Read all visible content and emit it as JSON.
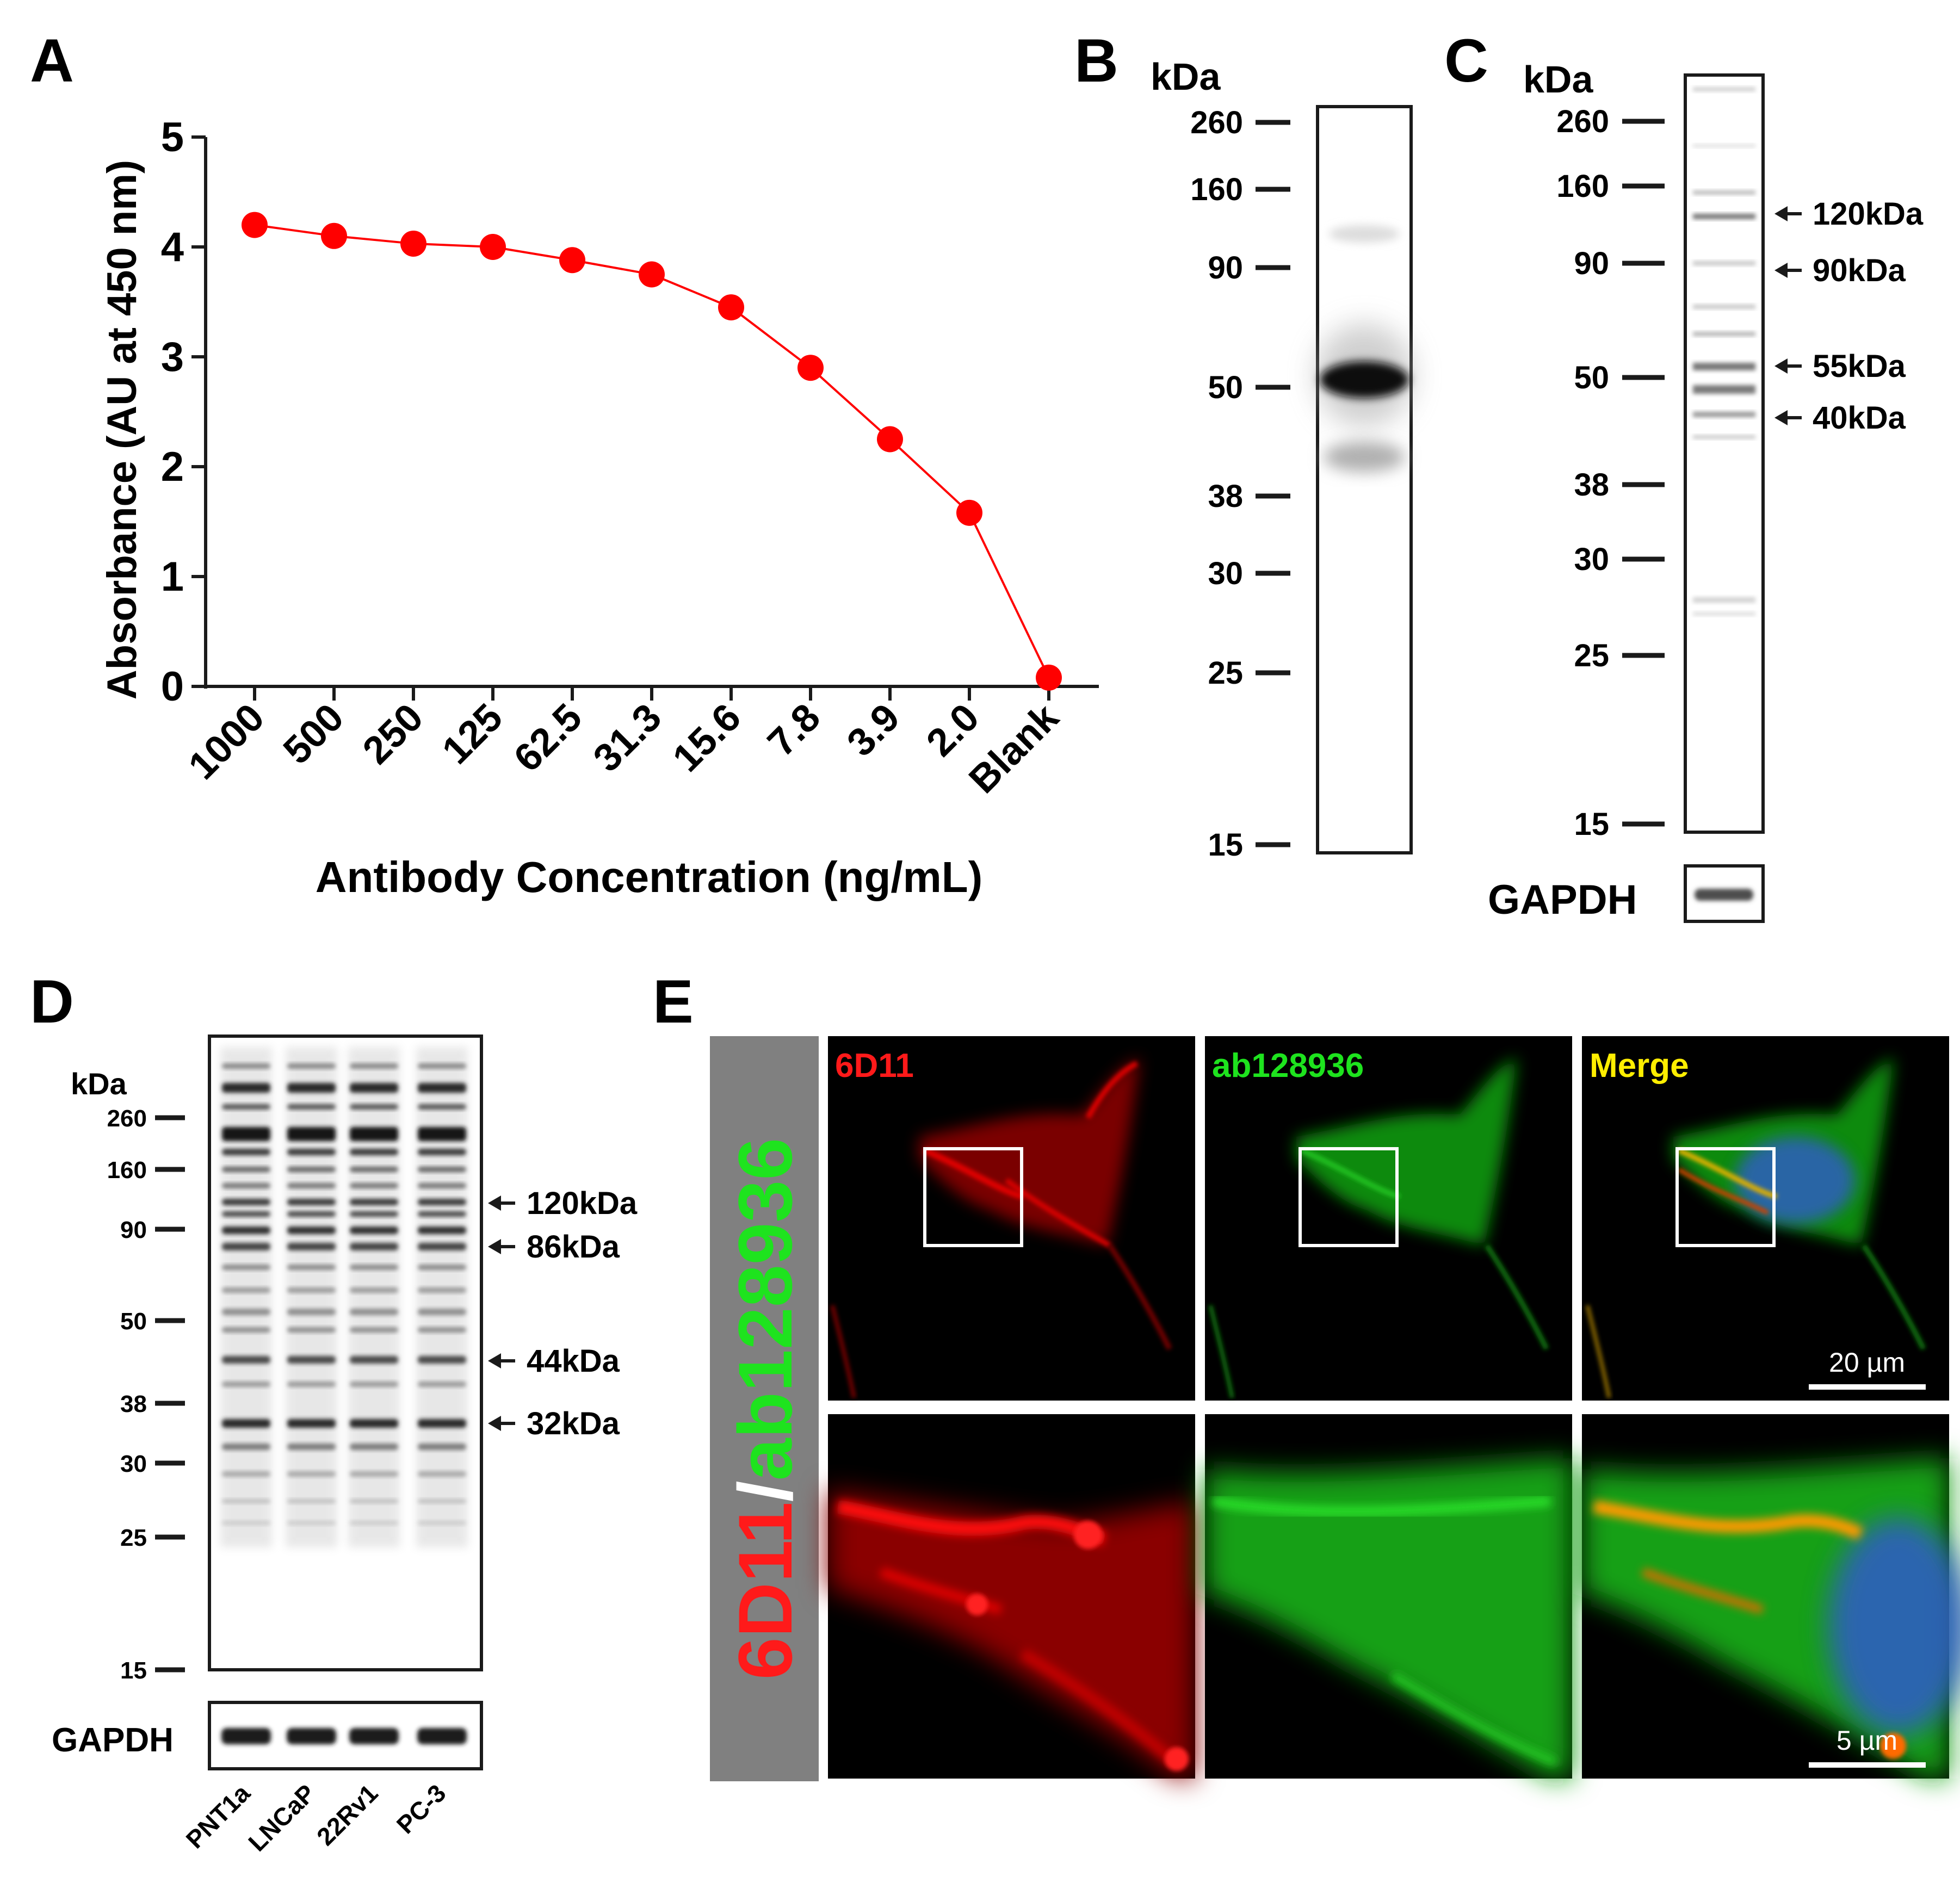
{
  "panels": {
    "a": "A",
    "b": "B",
    "c": "C",
    "d": "D",
    "e": "E"
  },
  "chart_data": {
    "type": "line",
    "title": "",
    "xlabel": "Antibody Concentration (ng/mL)",
    "ylabel": "Absorbance (AU at 450 nm)",
    "categories": [
      "1000",
      "500",
      "250",
      "125",
      "62.5",
      "31.3",
      "15.6",
      "7.8",
      "3.9",
      "2.0",
      "Blank"
    ],
    "values": [
      4.2,
      4.1,
      4.03,
      4.0,
      3.88,
      3.75,
      3.45,
      2.9,
      2.25,
      1.58,
      0.08
    ],
    "ylim": [
      0,
      5
    ],
    "yticks": [
      "0",
      "1",
      "2",
      "3",
      "4",
      "5"
    ],
    "color": "#ff0000",
    "grid": false,
    "legend": "none"
  },
  "blot_b": {
    "unit": "kDa",
    "markers": [
      "260",
      "160",
      "90",
      "50",
      "38",
      "30",
      "25",
      "15"
    ]
  },
  "blot_c": {
    "unit": "kDa",
    "markers": [
      "260",
      "160",
      "90",
      "50",
      "38",
      "30",
      "25",
      "15"
    ],
    "bands": [
      "120kDa",
      "90kDa",
      "55kDa",
      "40kDa"
    ],
    "loading_control": "GAPDH"
  },
  "blot_d": {
    "unit": "kDa",
    "markers": [
      "260",
      "160",
      "90",
      "50",
      "38",
      "30",
      "25",
      "15"
    ],
    "bands": [
      "120kDa",
      "86kDa",
      "44kDa",
      "32kDa"
    ],
    "loading_control": "GAPDH",
    "lanes": [
      "PNT1a",
      "LNCaP",
      "22Rv1",
      "PC-3"
    ]
  },
  "micro_e": {
    "side_label_red": "6D11",
    "side_label_sep": "/",
    "side_label_green": "ab128936",
    "channels": [
      "6D11",
      "ab128936",
      "Merge"
    ],
    "scale_top": "20 µm",
    "scale_bottom": "5 µm",
    "colors": {
      "red": "#ff1a1a",
      "green": "#1ee31e",
      "merge": "#ffee00",
      "side_bg": "#808080"
    }
  }
}
